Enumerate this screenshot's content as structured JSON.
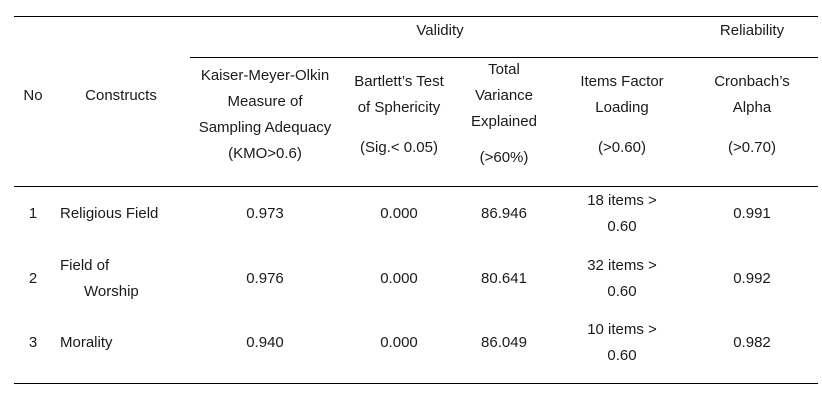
{
  "table": {
    "group_headers": {
      "validity": "Validity",
      "reliability": "Reliability"
    },
    "columns": {
      "no": "No",
      "constructs": "Constructs",
      "kmo": {
        "lines": [
          "Kaiser-Meyer-Olkin",
          "Measure of",
          "Sampling Adequacy",
          "(KMO>0.6)"
        ]
      },
      "bartlett": {
        "lines": [
          "Bartlett’s Test",
          "of Sphericity"
        ],
        "criterion": "(Sig.< 0.05)"
      },
      "variance": {
        "lines": [
          "Total",
          "Variance",
          "Explained"
        ],
        "criterion": "(>60%)"
      },
      "loading": {
        "lines": [
          "Items Factor",
          "Loading"
        ],
        "criterion": "(>0.60)"
      },
      "alpha": {
        "lines": [
          "Cronbach’s",
          "Alpha"
        ],
        "criterion": "(>0.70)"
      }
    },
    "rows": [
      {
        "no": "1",
        "construct": [
          "Religious Field"
        ],
        "kmo": "0.973",
        "bartlett": "0.000",
        "variance": "86.946",
        "loading": [
          "18 items >",
          "0.60"
        ],
        "alpha": "0.991"
      },
      {
        "no": "2",
        "construct": [
          "Field of",
          "Worship"
        ],
        "kmo": "0.976",
        "bartlett": "0.000",
        "variance": "80.641",
        "loading": [
          "32 items >",
          "0.60"
        ],
        "alpha": "0.992"
      },
      {
        "no": "3",
        "construct": [
          "Morality"
        ],
        "kmo": "0.940",
        "bartlett": "0.000",
        "variance": "86.049",
        "loading": [
          "10 items >",
          "0.60"
        ],
        "alpha": "0.982"
      }
    ]
  }
}
